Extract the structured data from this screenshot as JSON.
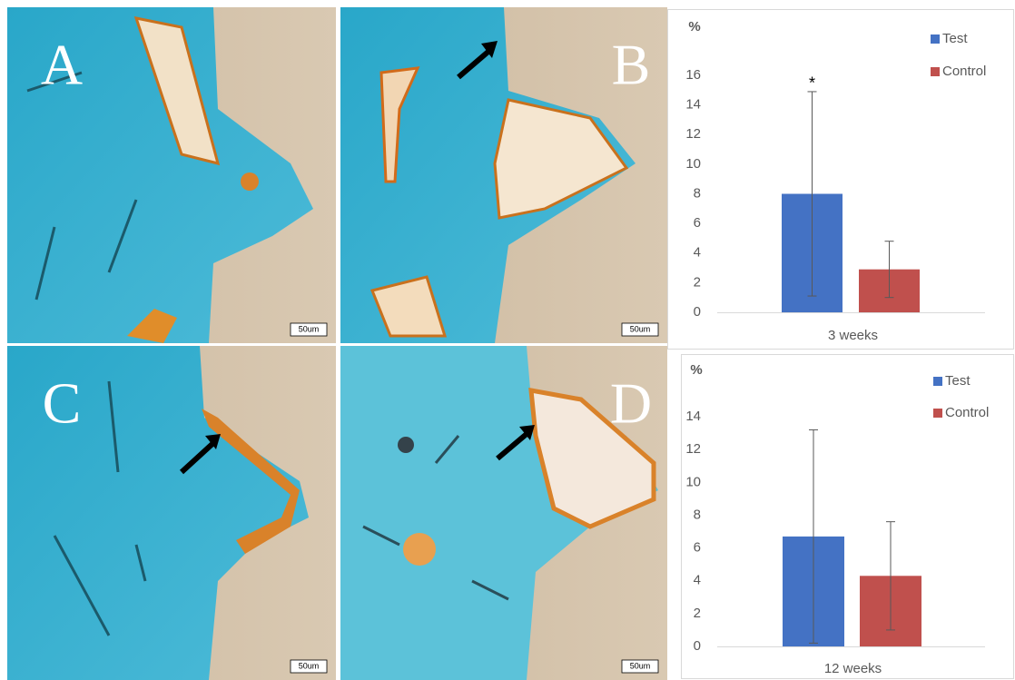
{
  "panels": [
    {
      "label": "A",
      "scale_bar": "50um"
    },
    {
      "label": "B",
      "scale_bar": "50um"
    },
    {
      "label": "C",
      "scale_bar": "50um"
    },
    {
      "label": "D",
      "scale_bar": "50um"
    }
  ],
  "chart_data": [
    {
      "type": "bar",
      "y_label": "%",
      "categories": [
        "3 weeks"
      ],
      "series": [
        {
          "name": "Test",
          "color": "#4472c4",
          "values": [
            8.0
          ],
          "errors": [
            6.9
          ]
        },
        {
          "name": "Control",
          "color": "#c0504d",
          "values": [
            2.9
          ],
          "errors": [
            1.9
          ]
        }
      ],
      "annotation": "*",
      "ylim": [
        0,
        16
      ],
      "yticks": [
        0,
        2,
        4,
        6,
        8,
        10,
        12,
        14,
        16
      ],
      "grid": false,
      "legend": "upper right"
    },
    {
      "type": "bar",
      "y_label": "%",
      "categories": [
        "12 weeks"
      ],
      "series": [
        {
          "name": "Test",
          "color": "#4472c4",
          "values": [
            6.7
          ],
          "errors": [
            6.5
          ]
        },
        {
          "name": "Control",
          "color": "#c0504d",
          "values": [
            4.3
          ],
          "errors": [
            3.3
          ]
        }
      ],
      "ylim": [
        0,
        14
      ],
      "yticks": [
        0,
        2,
        4,
        6,
        8,
        10,
        12,
        14
      ],
      "grid": false,
      "legend": "upper right"
    }
  ]
}
